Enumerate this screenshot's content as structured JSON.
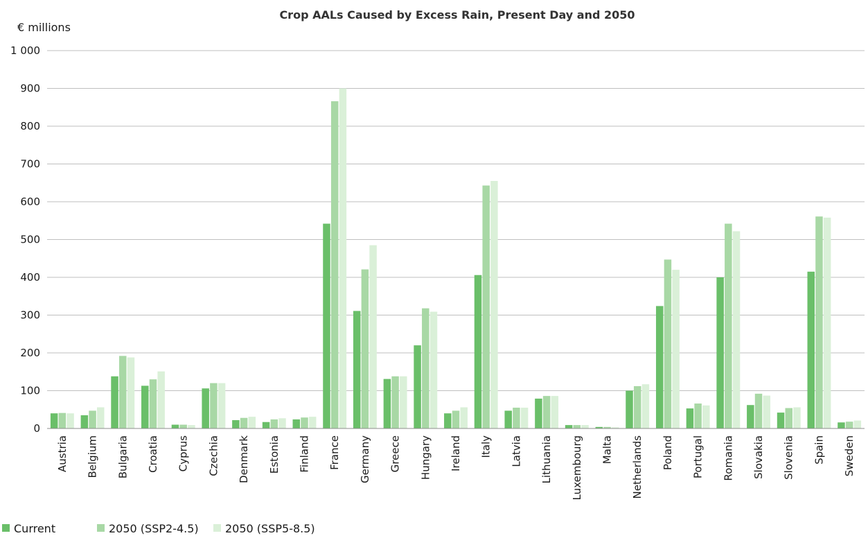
{
  "chart_data": {
    "type": "bar",
    "title": "Crop AALs Caused by Excess Rain, Present Day and 2050",
    "ylabel": "€ millions",
    "xlabel": "",
    "ylim": [
      0,
      1000
    ],
    "yticks": [
      0,
      100,
      200,
      300,
      400,
      500,
      600,
      700,
      800,
      900,
      1000
    ],
    "ytick_labels": [
      "0",
      "100",
      "200",
      "300",
      "400",
      "500",
      "600",
      "700",
      "800",
      "900",
      "1 000"
    ],
    "grid": true,
    "legend_position": "bottom-left",
    "categories": [
      "Austria",
      "Belgium",
      "Bulgaria",
      "Croatia",
      "Cyprus",
      "Czechia",
      "Denmark",
      "Estonia",
      "Finland",
      "France",
      "Germany",
      "Greece",
      "Hungary",
      "Ireland",
      "Italy",
      "Latvia",
      "Lithuania",
      "Luxembourg",
      "Malta",
      "Netherlands",
      "Poland",
      "Portugal",
      "Romania",
      "Slovakia",
      "Slovenia",
      "Spain",
      "Sweden"
    ],
    "series": [
      {
        "name": "Current",
        "color": "#6abf69",
        "values": [
          40,
          35,
          138,
          113,
          10,
          106,
          22,
          17,
          24,
          542,
          311,
          131,
          220,
          40,
          406,
          47,
          79,
          9,
          4,
          100,
          324,
          53,
          400,
          62,
          42,
          415,
          16
        ]
      },
      {
        "name": "2050 (SSP2-4.5)",
        "color": "#a8d8a5",
        "values": [
          41,
          47,
          192,
          130,
          10,
          120,
          28,
          24,
          29,
          866,
          421,
          138,
          318,
          47,
          643,
          55,
          86,
          9,
          4,
          112,
          447,
          66,
          542,
          92,
          54,
          561,
          18
        ]
      },
      {
        "name": "2050 (SSP5-8.5)",
        "color": "#daf0d8",
        "values": [
          40,
          56,
          188,
          151,
          9,
          120,
          31,
          27,
          31,
          900,
          485,
          138,
          309,
          56,
          655,
          55,
          86,
          9,
          3,
          117,
          420,
          61,
          522,
          87,
          56,
          558,
          21
        ]
      }
    ]
  }
}
